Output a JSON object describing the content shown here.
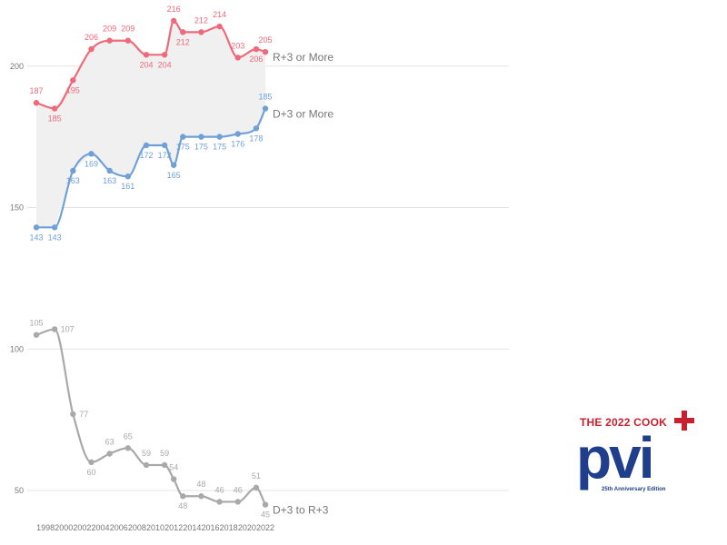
{
  "chart_data": {
    "type": "line",
    "x": [
      1997,
      1999,
      2001,
      2003,
      2005,
      2007,
      2009,
      2011,
      2012,
      2013,
      2015,
      2017,
      2019,
      2021,
      2022
    ],
    "x_ticks": [
      "1998",
      "2000",
      "2002",
      "2004",
      "2006",
      "2008",
      "2010",
      "2012",
      "2014",
      "2016",
      "2018",
      "2020",
      "2022"
    ],
    "y_ticks": [
      "50",
      "100",
      "150",
      "200"
    ],
    "ylim": [
      45,
      217
    ],
    "series": [
      {
        "name": "R+3 or More",
        "color": "#f0697a",
        "values": [
          187,
          185,
          195,
          206,
          209,
          209,
          204,
          204,
          216,
          212,
          212,
          214,
          203,
          206,
          205
        ]
      },
      {
        "name": "D+3 or More",
        "color": "#6fa0d8",
        "values": [
          143,
          143,
          163,
          169,
          163,
          161,
          172,
          172,
          165,
          175,
          175,
          175,
          176,
          178,
          185
        ]
      },
      {
        "name": "D+3 to R+3",
        "color": "#a9a9a9",
        "values": [
          105,
          107,
          77,
          60,
          63,
          65,
          59,
          59,
          54,
          48,
          48,
          46,
          46,
          51,
          45
        ]
      }
    ],
    "shaded_band_between": [
      "R+3 or More",
      "D+3 or More"
    ],
    "grid": true,
    "legend": "inline labels at right end of lines"
  },
  "logo": {
    "title": "THE 2022 COOK",
    "word": "pvi",
    "subtitle": "25th Anniversary Edition",
    "red": "#c8202f",
    "blue": "#1f3f8c"
  }
}
